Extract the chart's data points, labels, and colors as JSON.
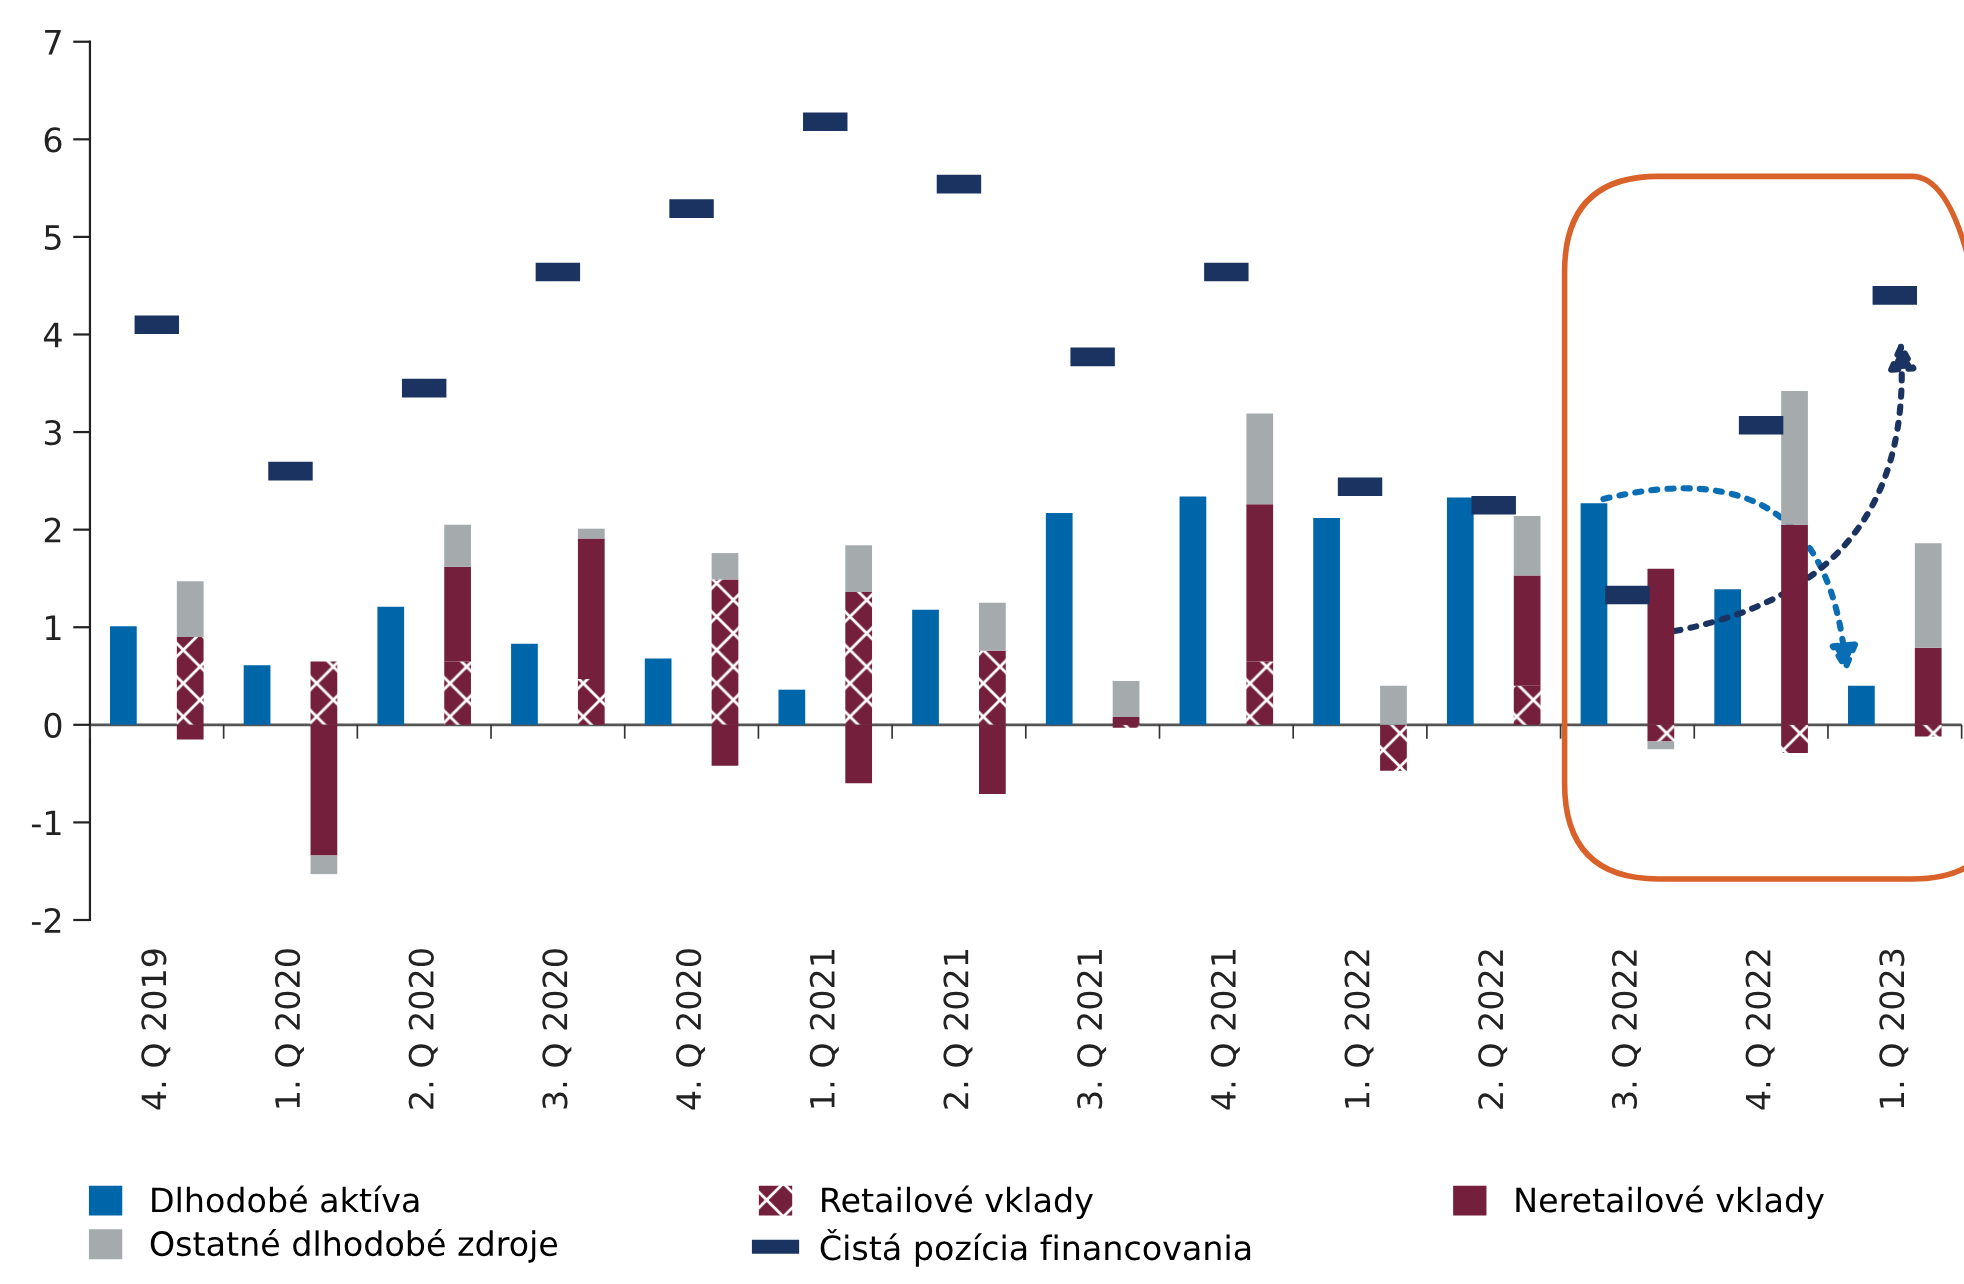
{
  "chart_data": [
    {
      "type": "bar",
      "grid": false,
      "categories": [
        null,
        null,
        null,
        null,
        null,
        null,
        null,
        null,
        null,
        null,
        null,
        null,
        null,
        null
      ],
      "series": [
        {
          "name": "Dlhodobé aktíva",
          "color": "#0066aa",
          "values": [
            1.01,
            0.61,
            1.21,
            0.83,
            0.68,
            0.36,
            1.18,
            2.17,
            2.34,
            2.12,
            2.33,
            2.27,
            1.39,
            0.4
          ]
        }
      ],
      "ylim": [
        -2,
        7
      ],
      "yticks": [
        -2,
        -1,
        0,
        1,
        2,
        3,
        4,
        5,
        6,
        7
      ],
      "ref_lines": [
        {
          "axis": "y",
          "value": 0,
          "color": "#555555"
        }
      ],
      "tick_labels": "y",
      "legend": "bottom"
    },
    {
      "type": "bar",
      "stacked": true,
      "grid": false,
      "categories": [
        "4. Q 2019",
        "1. Q 2020",
        "2. Q 2020",
        "3. Q 2020",
        "4. Q 2020",
        "1. Q 2021",
        "2. Q 2021",
        "3. Q 2021",
        "4. Q 2021",
        "1. Q 2022",
        "2. Q 2022",
        "3. Q 2022",
        "4. Q 2022",
        "1. Q 2023"
      ],
      "series": [
        {
          "name": "Retailové vklady",
          "color": "#74203d",
          "values": [
            0.9,
            0.65,
            0.65,
            0.47,
            1.49,
            1.36,
            0.76,
            -0.03,
            0.65,
            -0.47,
            0.4,
            -0.17,
            -0.29,
            -0.12
          ]
        },
        {
          "name": "Neretailové vklady",
          "color": "#74203d",
          "values": [
            -0.15,
            -1.34,
            0.97,
            1.44,
            -0.42,
            -0.6,
            -0.71,
            0.08,
            1.61,
            null,
            1.13,
            1.6,
            2.05,
            0.79
          ]
        },
        {
          "name": "Ostatné dlhodobé zdroje",
          "color": "#a5aaad",
          "values": [
            0.57,
            -0.19,
            0.43,
            0.1,
            0.27,
            0.48,
            0.49,
            0.37,
            0.93,
            0.4,
            0.61,
            -0.08,
            1.37,
            1.07
          ]
        },
        {
          "name": "Čistá pozícia financovania",
          "type": "scatter",
          "color": "#1b3360",
          "values": [
            4.1,
            2.6,
            3.45,
            4.64,
            5.29,
            6.18,
            5.54,
            3.77,
            4.64,
            2.44,
            2.25,
            1.33,
            3.07,
            4.4
          ]
        }
      ],
      "ylim": [
        -2,
        7
      ],
      "tick_labels": "x",
      "legend": "bottom"
    }
  ]
}
